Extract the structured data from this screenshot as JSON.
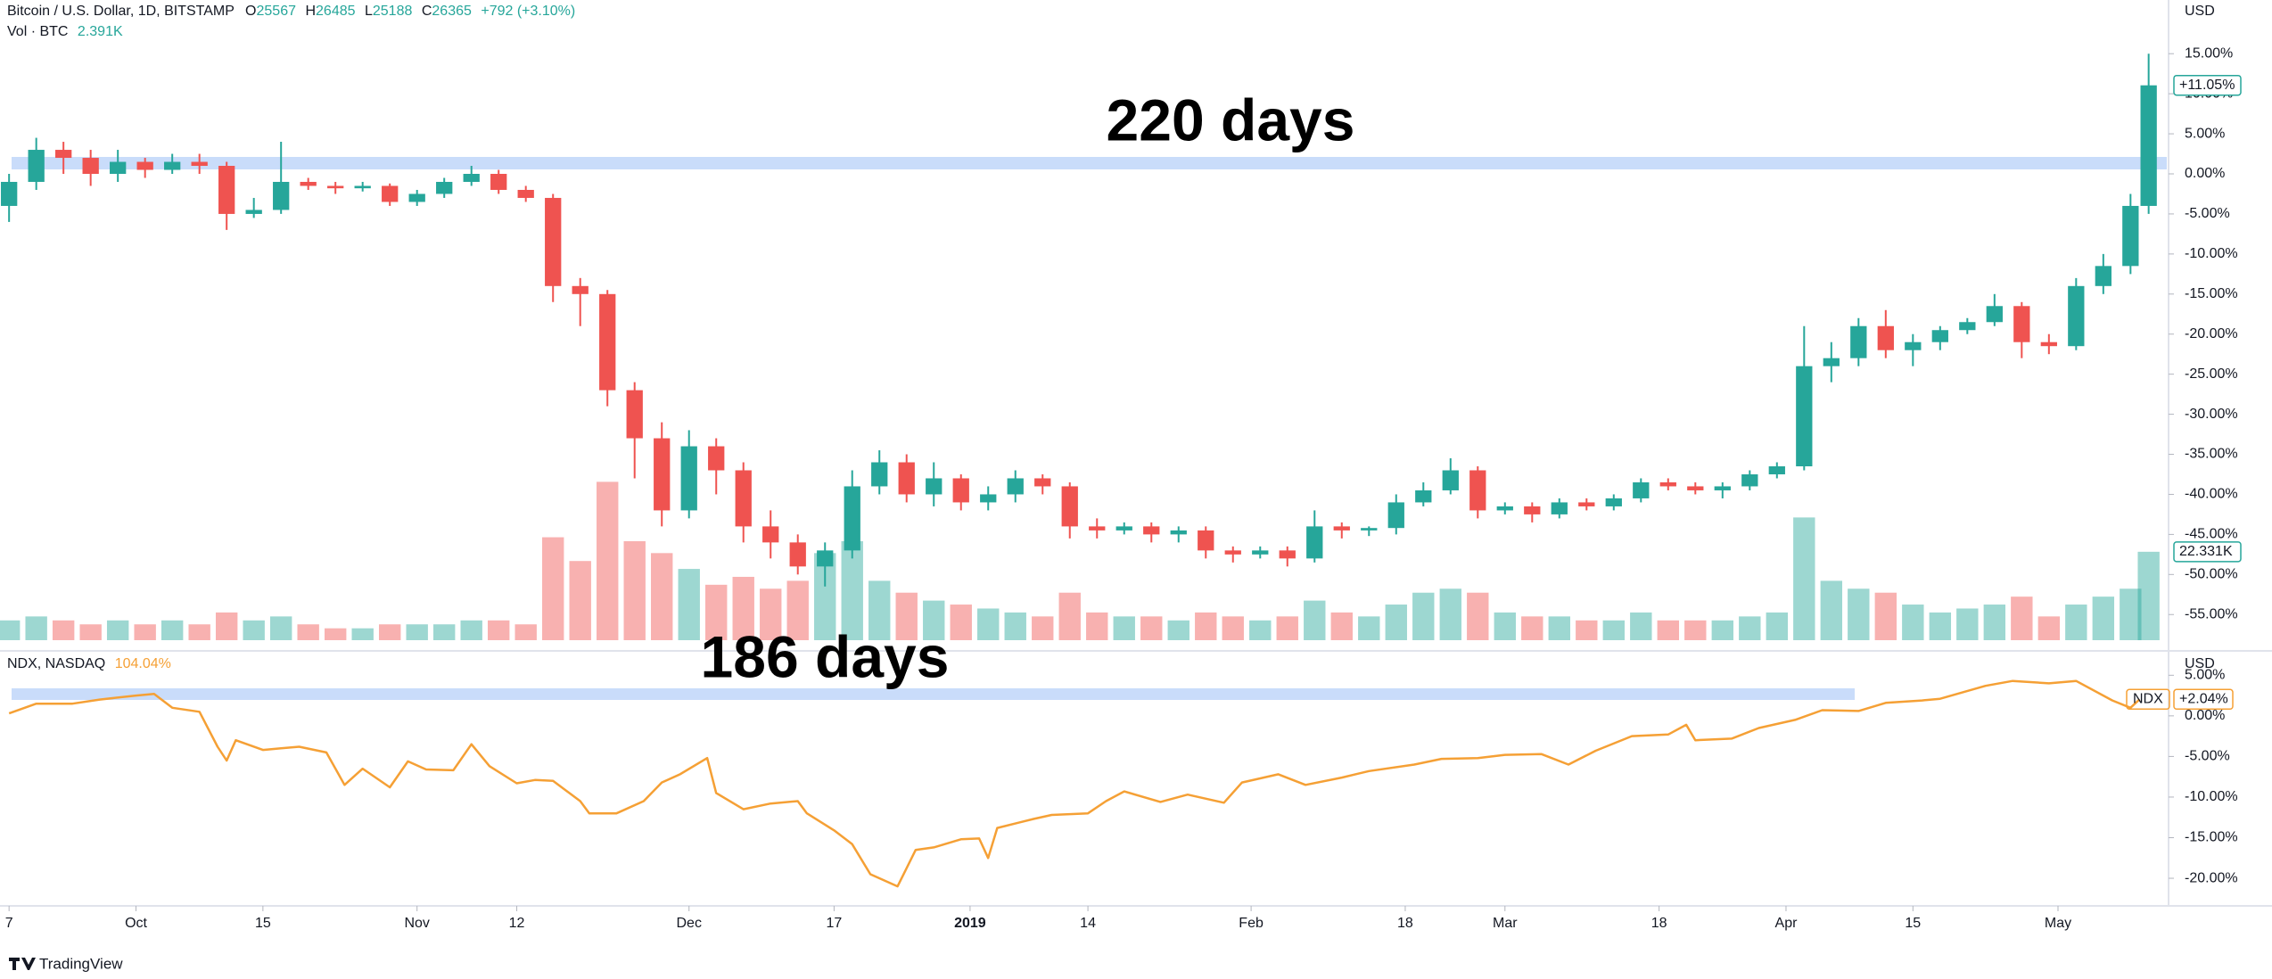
{
  "chart_data": [
    {
      "type": "candlestick",
      "title": "Bitcoin / U.S. Dollar, 1D, BITSTAMP",
      "ohlc": [
        {
          "key": "O",
          "value": 25567
        },
        {
          "key": "H",
          "value": 26485
        },
        {
          "key": "L",
          "value": 25188
        },
        {
          "key": "C",
          "value": 26365
        }
      ],
      "change": "+792 (+3.10%)",
      "volume_title": "Vol · BTC",
      "volume_last": "2.391K",
      "currency": "USD",
      "annotation": "220 days",
      "up_color": "#26a69a",
      "down_color": "#ef5350",
      "xlim": [
        "2018-09-16",
        "2019-05-13"
      ],
      "ylim": [
        -58.2,
        21.7
      ],
      "yticks": [
        {
          "value": 15,
          "label": "15.00%"
        },
        {
          "value": 10,
          "label": "10.00%"
        },
        {
          "value": 5,
          "label": "5.00%"
        },
        {
          "value": 0,
          "label": "0.00%"
        },
        {
          "value": -5,
          "label": "-5.00%"
        },
        {
          "value": -10,
          "label": "-10.00%"
        },
        {
          "value": -15,
          "label": "-15.00%"
        },
        {
          "value": -20,
          "label": "-20.00%"
        },
        {
          "value": -25,
          "label": "-25.00%"
        },
        {
          "value": -30,
          "label": "-30.00%"
        },
        {
          "value": -35,
          "label": "-35.00%"
        },
        {
          "value": -40,
          "label": "-40.00%"
        },
        {
          "value": -45,
          "label": "-45.00%"
        },
        {
          "value": -50,
          "label": "-50.00%"
        },
        {
          "value": -55,
          "label": "-55.00%"
        }
      ],
      "last_price": {
        "value": 11.05,
        "label": "+11.05%"
      },
      "last_volume": {
        "value": 22.331,
        "label": "22.331K"
      },
      "x": [
        "2018-09-17",
        "2018-09-20",
        "2018-09-23",
        "2018-09-26",
        "2018-09-29",
        "2018-10-02",
        "2018-10-05",
        "2018-10-08",
        "2018-10-11",
        "2018-10-14",
        "2018-10-17",
        "2018-10-20",
        "2018-10-23",
        "2018-10-26",
        "2018-10-29",
        "2018-11-01",
        "2018-11-04",
        "2018-11-07",
        "2018-11-10",
        "2018-11-13",
        "2018-11-16",
        "2018-11-19",
        "2018-11-22",
        "2018-11-25",
        "2018-11-28",
        "2018-12-01",
        "2018-12-04",
        "2018-12-07",
        "2018-12-10",
        "2018-12-13",
        "2018-12-16",
        "2018-12-19",
        "2018-12-22",
        "2018-12-25",
        "2018-12-28",
        "2018-12-31",
        "2019-01-03",
        "2019-01-06",
        "2019-01-09",
        "2019-01-12",
        "2019-01-15",
        "2019-01-18",
        "2019-01-21",
        "2019-01-24",
        "2019-01-27",
        "2019-01-30",
        "2019-02-02",
        "2019-02-05",
        "2019-02-08",
        "2019-02-11",
        "2019-02-14",
        "2019-02-17",
        "2019-02-20",
        "2019-02-23",
        "2019-02-26",
        "2019-03-01",
        "2019-03-04",
        "2019-03-07",
        "2019-03-10",
        "2019-03-13",
        "2019-03-16",
        "2019-03-19",
        "2019-03-22",
        "2019-03-25",
        "2019-03-28",
        "2019-03-31",
        "2019-04-03",
        "2019-04-06",
        "2019-04-09",
        "2019-04-12",
        "2019-04-15",
        "2019-04-18",
        "2019-04-21",
        "2019-04-24",
        "2019-04-27",
        "2019-04-30",
        "2019-05-03",
        "2019-05-06",
        "2019-05-09",
        "2019-05-11"
      ],
      "open": [
        -4,
        -1,
        3,
        2,
        0,
        1.5,
        0.5,
        1.5,
        1,
        -5,
        -4.5,
        -1,
        -1.5,
        -1.8,
        -1.5,
        -3.5,
        -2.5,
        -1,
        0,
        -2,
        -3,
        -14,
        -15,
        -27,
        -33,
        -42,
        -34,
        -37,
        -44,
        -46,
        -49,
        -47,
        -39,
        -36,
        -40,
        -38,
        -41,
        -40,
        -38,
        -39,
        -44,
        -44.5,
        -44,
        -45,
        -44.5,
        -47,
        -47.5,
        -47,
        -48,
        -44,
        -44.5,
        -44.2,
        -41,
        -39.5,
        -37,
        -42,
        -41.5,
        -42.5,
        -41,
        -41.5,
        -40.5,
        -38.5,
        -39,
        -39.5,
        -39,
        -37.5,
        -36.5,
        -24,
        -23,
        -19,
        -22,
        -21,
        -19.5,
        -18.5,
        -16.5,
        -21,
        -21.5,
        -14,
        -11.5,
        -4
      ],
      "high": [
        0,
        4.5,
        4,
        3,
        3,
        2,
        2.5,
        2.5,
        1.5,
        -3,
        4,
        -0.5,
        -1,
        -1,
        -1.2,
        -2,
        -0.5,
        1,
        0.5,
        -1.5,
        -2.5,
        -13,
        -14.5,
        -26,
        -31,
        -32,
        -33,
        -36,
        -42,
        -45,
        -46,
        -37,
        -34.5,
        -35,
        -36,
        -37.5,
        -39,
        -37,
        -37.5,
        -38.5,
        -43,
        -43.5,
        -43.5,
        -44,
        -44,
        -46.5,
        -46.5,
        -46.5,
        -42,
        -43.5,
        -44,
        -40,
        -38.5,
        -35.5,
        -36.5,
        -41,
        -41,
        -40.5,
        -40.5,
        -40,
        -38,
        -38,
        -38.5,
        -38.5,
        -37,
        -36,
        -19,
        -21,
        -18,
        -17,
        -20,
        -19,
        -18,
        -15,
        -16,
        -20,
        -13,
        -10,
        -2.5,
        15
      ],
      "low": [
        -6,
        -2,
        0,
        -1.5,
        -1,
        -0.5,
        0,
        0,
        -7,
        -5.5,
        -5,
        -2,
        -2.5,
        -2.2,
        -4,
        -4,
        -3,
        -1.5,
        -2.5,
        -3.5,
        -16,
        -19,
        -29,
        -38,
        -44,
        -43,
        -40,
        -46,
        -48,
        -50,
        -51.5,
        -48,
        -40,
        -41,
        -41.5,
        -42,
        -42,
        -41,
        -40,
        -45.5,
        -45.5,
        -45,
        -46,
        -46,
        -48,
        -48.5,
        -48,
        -49,
        -48.5,
        -45.5,
        -45.2,
        -45,
        -41.5,
        -40,
        -43,
        -42.5,
        -43.5,
        -43,
        -42,
        -42,
        -41,
        -39.5,
        -40,
        -40.5,
        -39.5,
        -38,
        -37,
        -26,
        -24,
        -23,
        -24,
        -22,
        -20,
        -19,
        -23,
        -22.5,
        -22,
        -15,
        -12.5,
        -5
      ],
      "close": [
        -1,
        3,
        2,
        0,
        1.5,
        0.5,
        1.5,
        1,
        -5,
        -4.5,
        -1,
        -1.5,
        -1.8,
        -1.5,
        -3.5,
        -2.5,
        -1,
        0,
        -2,
        -3,
        -14,
        -15,
        -27,
        -33,
        -42,
        -34,
        -37,
        -44,
        -46,
        -49,
        -47,
        -39,
        -36,
        -40,
        -38,
        -41,
        -40,
        -38,
        -39,
        -44,
        -44.5,
        -44,
        -45,
        -44.5,
        -47,
        -47.5,
        -47,
        -48,
        -44,
        -44.5,
        -44.2,
        -41,
        -39.5,
        -37,
        -42,
        -41.5,
        -42.5,
        -41,
        -41.5,
        -40.5,
        -38.5,
        -39,
        -39.5,
        -39,
        -37.5,
        -36.5,
        -24,
        -23,
        -19,
        -22,
        -21,
        -19.5,
        -18.5,
        -16.5,
        -21,
        -21.5,
        -14,
        -11.5,
        -4,
        11.05
      ],
      "volume": [
        5,
        6,
        5,
        4,
        5,
        4,
        5,
        4,
        7,
        5,
        6,
        4,
        3,
        3,
        4,
        4,
        4,
        5,
        5,
        4,
        26,
        20,
        40,
        25,
        22,
        18,
        14,
        16,
        13,
        15,
        22,
        25,
        15,
        12,
        10,
        9,
        8,
        7,
        6,
        12,
        7,
        6,
        6,
        5,
        7,
        6,
        5,
        6,
        10,
        7,
        6,
        9,
        12,
        13,
        12,
        7,
        6,
        6,
        5,
        5,
        7,
        5,
        5,
        5,
        6,
        7,
        31,
        15,
        13,
        12,
        9,
        7,
        8,
        9,
        11,
        6,
        9,
        11,
        13,
        22.331
      ]
    },
    {
      "type": "line",
      "title": "NDX, NASDAQ",
      "title_value": "104.04%",
      "currency": "USD",
      "annotation": "186 days",
      "xlim": [
        "2018-09-16",
        "2019-05-13"
      ],
      "ylim": [
        -23.4,
        8.0
      ],
      "yticks": [
        {
          "value": 5,
          "label": "5.00%"
        },
        {
          "value": 0,
          "label": "0.00%"
        },
        {
          "value": -5,
          "label": "-5.00%"
        },
        {
          "value": -10,
          "label": "-10.00%"
        },
        {
          "value": -15,
          "label": "-15.00%"
        },
        {
          "value": -20,
          "label": "-20.00%"
        }
      ],
      "last_value": {
        "value": 2.04,
        "label": "+2.04%"
      },
      "xticks": [
        {
          "value": "2018-09-17",
          "label": "7"
        },
        {
          "value": "2018-10-01",
          "label": "Oct"
        },
        {
          "value": "2018-10-15",
          "label": "15"
        },
        {
          "value": "2018-11-01",
          "label": "Nov"
        },
        {
          "value": "2018-11-12",
          "label": "12"
        },
        {
          "value": "2018-12-01",
          "label": "Dec"
        },
        {
          "value": "2018-12-17",
          "label": "17"
        },
        {
          "value": "2019-01-01",
          "label": "2019"
        },
        {
          "value": "2019-01-14",
          "label": "14"
        },
        {
          "value": "2019-02-01",
          "label": "Feb"
        },
        {
          "value": "2019-02-18",
          "label": "18"
        },
        {
          "value": "2019-03-01",
          "label": "Mar"
        },
        {
          "value": "2019-03-18",
          "label": "18"
        },
        {
          "value": "2019-04-01",
          "label": "Apr"
        },
        {
          "value": "2019-04-15",
          "label": "15"
        },
        {
          "value": "2019-05-01",
          "label": "May"
        }
      ],
      "x": [
        "2018-09-17",
        "2018-09-20",
        "2018-09-24",
        "2018-09-27",
        "2018-10-01",
        "2018-10-03",
        "2018-10-05",
        "2018-10-08",
        "2018-10-10",
        "2018-10-11",
        "2018-10-12",
        "2018-10-15",
        "2018-10-17",
        "2018-10-19",
        "2018-10-22",
        "2018-10-24",
        "2018-10-26",
        "2018-10-29",
        "2018-10-31",
        "2018-11-02",
        "2018-11-05",
        "2018-11-07",
        "2018-11-09",
        "2018-11-12",
        "2018-11-14",
        "2018-11-16",
        "2018-11-19",
        "2018-11-20",
        "2018-11-23",
        "2018-11-26",
        "2018-11-28",
        "2018-11-30",
        "2018-12-03",
        "2018-12-04",
        "2018-12-07",
        "2018-12-10",
        "2018-12-13",
        "2018-12-14",
        "2018-12-17",
        "2018-12-19",
        "2018-12-21",
        "2018-12-24",
        "2018-12-26",
        "2018-12-28",
        "2018-12-31",
        "2019-01-02",
        "2019-01-03",
        "2019-01-04",
        "2019-01-08",
        "2019-01-10",
        "2019-01-14",
        "2019-01-16",
        "2019-01-18",
        "2019-01-22",
        "2019-01-25",
        "2019-01-29",
        "2019-01-31",
        "2019-02-04",
        "2019-02-07",
        "2019-02-11",
        "2019-02-14",
        "2019-02-19",
        "2019-02-22",
        "2019-02-26",
        "2019-03-01",
        "2019-03-05",
        "2019-03-08",
        "2019-03-11",
        "2019-03-15",
        "2019-03-19",
        "2019-03-21",
        "2019-03-22",
        "2019-03-26",
        "2019-03-29",
        "2019-04-02",
        "2019-04-05",
        "2019-04-09",
        "2019-04-12",
        "2019-04-16",
        "2019-04-18",
        "2019-04-23",
        "2019-04-26",
        "2019-04-30",
        "2019-05-03",
        "2019-05-07",
        "2019-05-09",
        "2019-05-10"
      ],
      "series": [
        {
          "name": "NDX",
          "color": "#f5a035",
          "values": [
            0.3,
            1.5,
            1.5,
            2.0,
            2.5,
            2.7,
            1.0,
            0.5,
            -3.8,
            -5.5,
            -3.0,
            -4.2,
            -4.0,
            -3.8,
            -4.5,
            -8.5,
            -6.5,
            -8.8,
            -5.6,
            -6.6,
            -6.7,
            -3.5,
            -6.2,
            -8.3,
            -7.9,
            -8.0,
            -10.5,
            -12.0,
            -12.0,
            -10.5,
            -8.2,
            -7.2,
            -5.2,
            -9.5,
            -11.5,
            -10.8,
            -10.5,
            -12.0,
            -14.1,
            -15.8,
            -19.5,
            -21.0,
            -16.5,
            -16.2,
            -15.2,
            -15.1,
            -17.5,
            -13.8,
            -12.7,
            -12.2,
            -12.0,
            -10.5,
            -9.3,
            -10.6,
            -9.7,
            -10.7,
            -8.2,
            -7.2,
            -8.5,
            -7.6,
            -6.8,
            -6.0,
            -5.3,
            -5.2,
            -4.8,
            -4.7,
            -6.0,
            -4.3,
            -2.5,
            -2.3,
            -1.1,
            -3.0,
            -2.8,
            -1.5,
            -0.5,
            0.7,
            0.6,
            1.6,
            1.9,
            2.1,
            3.7,
            4.3,
            4.0,
            4.3,
            1.9,
            1.0,
            2.04
          ]
        }
      ]
    }
  ],
  "footer": "TradingView"
}
